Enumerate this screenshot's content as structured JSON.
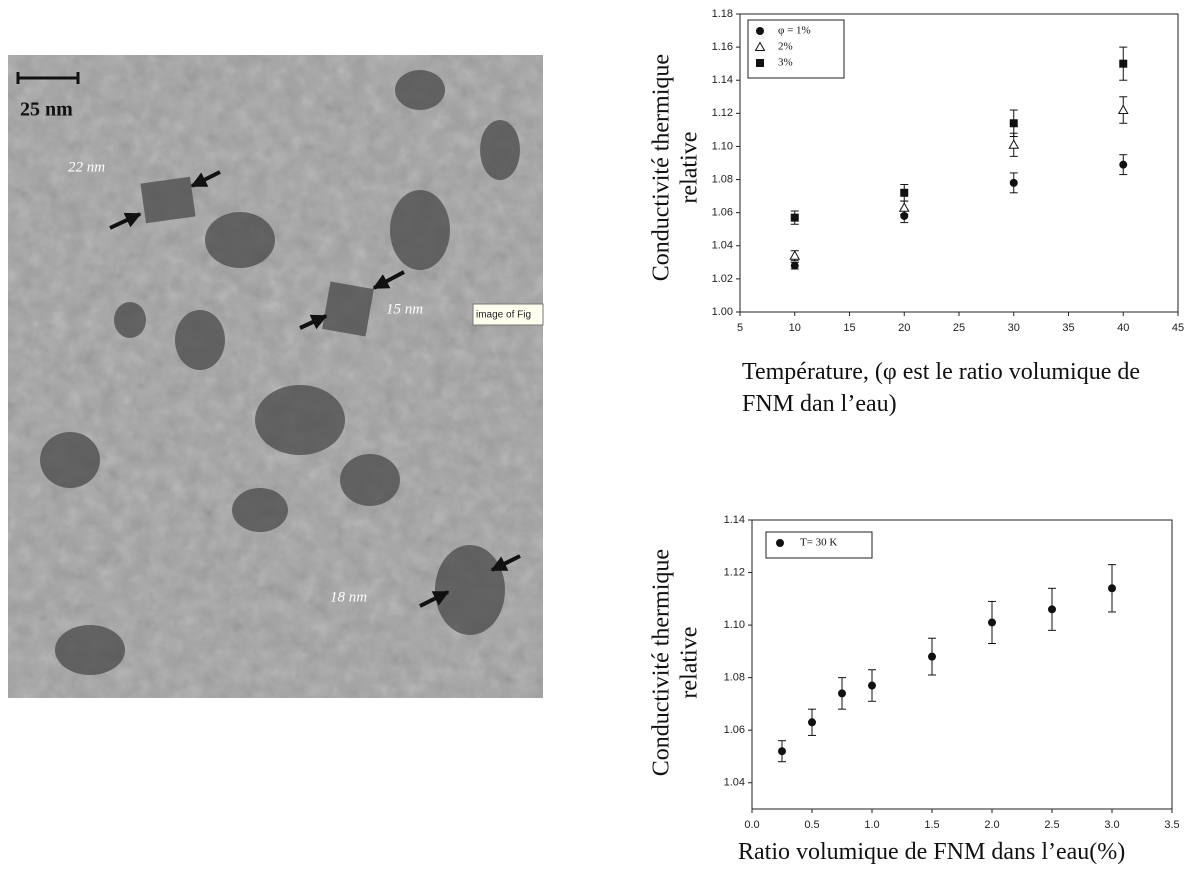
{
  "micrograph": {
    "scale_bar": "25 nm",
    "labels": [
      "22 nm",
      "15 nm",
      "18 nm"
    ],
    "tooltip": "image of Fig"
  },
  "chart_data": [
    {
      "type": "scatter",
      "x": [
        10,
        20,
        30,
        40
      ],
      "series": [
        {
          "name": "φ = 1%",
          "color": "#111111",
          "marker": "circle",
          "values": [
            1.028,
            1.058,
            1.078,
            1.089
          ],
          "errors": [
            0.002,
            0.004,
            0.006,
            0.006
          ]
        },
        {
          "name": "2%",
          "color": "#111111",
          "marker": "triangle",
          "values": [
            1.034,
            1.063,
            1.101,
            1.122
          ],
          "errors": [
            0.003,
            0.004,
            0.007,
            0.008
          ]
        },
        {
          "name": "3%",
          "color": "#111111",
          "marker": "square",
          "values": [
            1.057,
            1.072,
            1.114,
            1.15
          ],
          "errors": [
            0.004,
            0.005,
            0.008,
            0.01
          ]
        }
      ],
      "xlim": [
        5,
        45
      ],
      "xticks": [
        5,
        10,
        15,
        20,
        25,
        30,
        35,
        40,
        45
      ],
      "ylim": [
        1.0,
        1.18
      ],
      "yticks": [
        {
          "value": 1.0,
          "label": "1.00"
        },
        1.02,
        1.04,
        1.06,
        1.08,
        {
          "value": 1.1,
          "label": "1.10"
        },
        1.12,
        1.14,
        1.16,
        1.18
      ],
      "xlabel": "Température, (φ est le ratio volumique de FNM dan l’eau)",
      "ylabel": "Conductivité thermique relative",
      "legend": "upper left",
      "grid": false
    },
    {
      "type": "scatter",
      "x": [
        0.25,
        0.5,
        0.75,
        1,
        1.5,
        2,
        2.5,
        3
      ],
      "series": [
        {
          "name": "T= 30 K",
          "color": "#111111",
          "marker": "circle",
          "values": [
            1.052,
            1.063,
            1.074,
            1.077,
            1.088,
            1.101,
            1.106,
            1.114
          ],
          "errors": [
            0.004,
            0.005,
            0.006,
            0.006,
            0.007,
            0.008,
            0.008,
            0.009
          ]
        }
      ],
      "xlim": [
        0,
        3.5
      ],
      "xticks": [
        {
          "value": 0,
          "label": "0.0"
        },
        0.5,
        {
          "value": 1,
          "label": "1.0"
        },
        1.5,
        {
          "value": 2,
          "label": "2.0"
        },
        2.5,
        {
          "value": 3,
          "label": "3.0"
        },
        3.5
      ],
      "ylim": [
        1.03,
        1.14
      ],
      "yticks": [
        1.04,
        1.06,
        1.08,
        {
          "value": 1.1,
          "label": "1.10"
        },
        1.12,
        1.14
      ],
      "xlabel": "Ratio volumique de FNM dans l’eau(%)",
      "ylabel": "Conductivité thermique relative",
      "legend": "upper left",
      "grid": false
    }
  ]
}
